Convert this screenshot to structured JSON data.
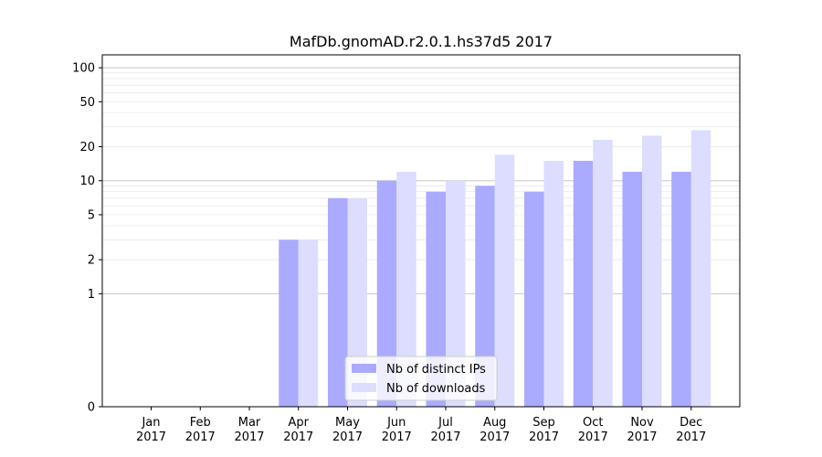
{
  "chart_data": {
    "type": "bar",
    "title": "MafDb.gnomAD.r2.0.1.hs37d5 2017",
    "xlabel": "",
    "ylabel": "",
    "y_scale": "symlog",
    "ylim": [
      0,
      130
    ],
    "y_ticks": [
      0,
      1,
      2,
      5,
      10,
      20,
      50,
      100
    ],
    "y_tick_labels": [
      "0",
      "1",
      "2",
      "5",
      "10",
      "20",
      "50",
      "100"
    ],
    "grid": "horizontal",
    "legend_position": "bottom-center",
    "categories": [
      [
        "Jan",
        "2017"
      ],
      [
        "Feb",
        "2017"
      ],
      [
        "Mar",
        "2017"
      ],
      [
        "Apr",
        "2017"
      ],
      [
        "May",
        "2017"
      ],
      [
        "Jun",
        "2017"
      ],
      [
        "Jul",
        "2017"
      ],
      [
        "Aug",
        "2017"
      ],
      [
        "Sep",
        "2017"
      ],
      [
        "Oct",
        "2017"
      ],
      [
        "Nov",
        "2017"
      ],
      [
        "Dec",
        "2017"
      ]
    ],
    "series": [
      {
        "name": "Nb of distinct IPs",
        "color": "#aaaaff",
        "values": [
          0,
          0,
          0,
          3,
          7,
          10,
          8,
          9,
          8,
          15,
          12,
          12
        ]
      },
      {
        "name": "Nb of downloads",
        "color": "#ddddff",
        "values": [
          0,
          0,
          0,
          3,
          7,
          12,
          10,
          17,
          15,
          23,
          25,
          28
        ]
      }
    ]
  }
}
